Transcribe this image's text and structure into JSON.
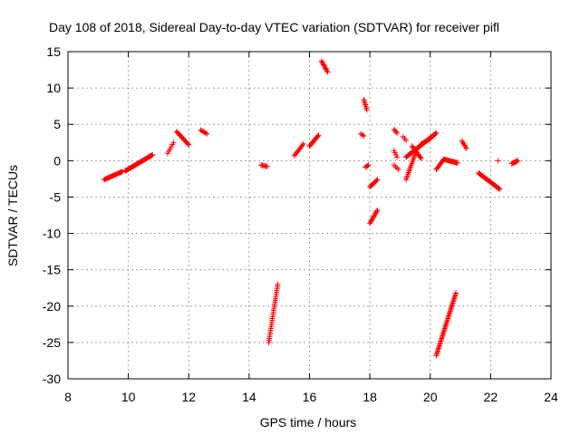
{
  "chart_data": {
    "type": "scatter",
    "title": "Day 108 of 2018, Sidereal Day-to-day VTEC variation (SDTVAR) for receiver pifl",
    "xlabel": "GPS time / hours",
    "ylabel": "SDTVAR / TECUs",
    "xlim": [
      8,
      24
    ],
    "ylim": [
      -30,
      15
    ],
    "xticks": [
      "8",
      "10",
      "12",
      "14",
      "16",
      "18",
      "20",
      "22",
      "24"
    ],
    "yticks": [
      "15",
      "10",
      "5",
      "0",
      "-5",
      "-10",
      "-15",
      "-20",
      "-25",
      "-30"
    ],
    "grid": true,
    "marker": "+",
    "colors": {
      "points": "#ff0000",
      "grid": "#a0a0a0",
      "axis": "#000000"
    },
    "segments": [
      {
        "x0": 9.2,
        "x1": 9.8,
        "y0": -2.6,
        "y1": -1.5,
        "n": 22
      },
      {
        "x0": 9.9,
        "x1": 10.8,
        "y0": -1.4,
        "y1": 0.8,
        "n": 40
      },
      {
        "x0": 11.3,
        "x1": 11.5,
        "y0": 1.0,
        "y1": 2.5,
        "n": 6
      },
      {
        "x0": 11.6,
        "x1": 12.0,
        "y0": 4.0,
        "y1": 2.2,
        "n": 16
      },
      {
        "x0": 12.4,
        "x1": 12.6,
        "y0": 4.2,
        "y1": 3.7,
        "n": 6
      },
      {
        "x0": 14.4,
        "x1": 14.6,
        "y0": -0.6,
        "y1": -0.8,
        "n": 6
      },
      {
        "x0": 14.65,
        "x1": 14.95,
        "y0": -25.0,
        "y1": -17.0,
        "n": 30
      },
      {
        "x0": 15.5,
        "x1": 15.8,
        "y0": 0.7,
        "y1": 2.3,
        "n": 10
      },
      {
        "x0": 16.0,
        "x1": 16.3,
        "y0": 2.0,
        "y1": 3.5,
        "n": 12
      },
      {
        "x0": 16.4,
        "x1": 16.6,
        "y0": 13.7,
        "y1": 12.2,
        "n": 10
      },
      {
        "x0": 17.7,
        "x1": 17.8,
        "y0": 3.7,
        "y1": 3.4,
        "n": 3
      },
      {
        "x0": 17.8,
        "x1": 17.9,
        "y0": 8.4,
        "y1": 7.0,
        "n": 7
      },
      {
        "x0": 17.85,
        "x1": 17.95,
        "y0": -0.9,
        "y1": -0.6,
        "n": 4
      },
      {
        "x0": 18.0,
        "x1": 18.25,
        "y0": -3.6,
        "y1": -2.6,
        "n": 9
      },
      {
        "x0": 18.0,
        "x1": 18.25,
        "y0": -8.6,
        "y1": -6.8,
        "n": 12
      },
      {
        "x0": 18.8,
        "x1": 18.9,
        "y0": 4.3,
        "y1": 3.8,
        "n": 4
      },
      {
        "x0": 18.8,
        "x1": 18.9,
        "y0": 1.4,
        "y1": 0.5,
        "n": 4
      },
      {
        "x0": 18.8,
        "x1": 18.95,
        "y0": -0.6,
        "y1": -1.2,
        "n": 4
      },
      {
        "x0": 19.1,
        "x1": 19.2,
        "y0": 3.3,
        "y1": 2.8,
        "n": 3
      },
      {
        "x0": 19.2,
        "x1": 19.55,
        "y0": -2.6,
        "y1": 1.5,
        "n": 18
      },
      {
        "x0": 19.2,
        "x1": 20.2,
        "y0": 0.5,
        "y1": 3.8,
        "n": 40
      },
      {
        "x0": 19.4,
        "x1": 19.7,
        "y0": 2.0,
        "y1": 0.3,
        "n": 12
      },
      {
        "x0": 19.7,
        "x1": 20.0,
        "y0": 2.3,
        "y1": 3.0,
        "n": 10
      },
      {
        "x0": 20.2,
        "x1": 20.45,
        "y0": -1.2,
        "y1": 0.2,
        "n": 10
      },
      {
        "x0": 20.45,
        "x1": 20.9,
        "y0": 0.2,
        "y1": -0.3,
        "n": 18
      },
      {
        "x0": 20.2,
        "x1": 20.85,
        "y0": -26.8,
        "y1": -18.2,
        "n": 45
      },
      {
        "x0": 21.05,
        "x1": 21.2,
        "y0": 2.7,
        "y1": 1.7,
        "n": 6
      },
      {
        "x0": 21.6,
        "x1": 22.3,
        "y0": -1.7,
        "y1": -3.9,
        "n": 34
      },
      {
        "x0": 22.25,
        "x1": 22.3,
        "y0": 0.0,
        "y1": 0.0,
        "n": 1
      },
      {
        "x0": 22.7,
        "x1": 22.9,
        "y0": -0.4,
        "y1": 0.0,
        "n": 8
      }
    ]
  }
}
